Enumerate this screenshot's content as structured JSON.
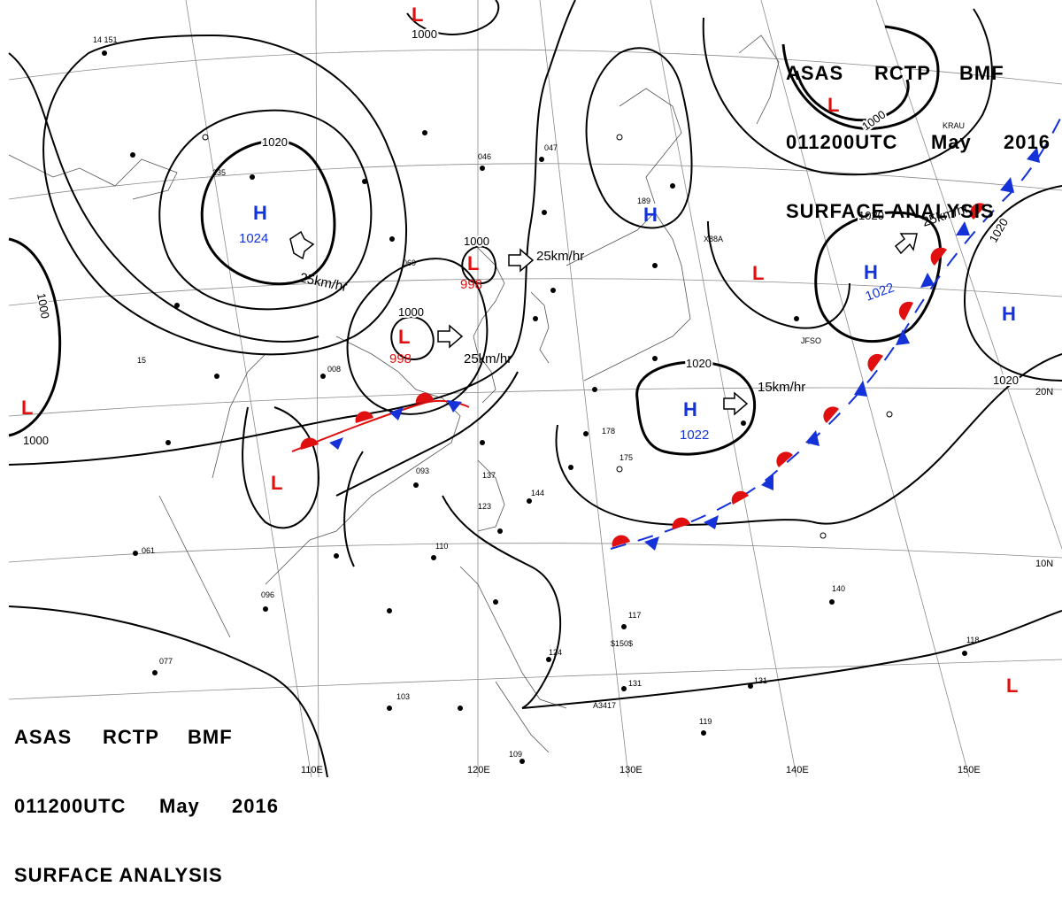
{
  "title": {
    "agency_line": [
      "ASAS",
      "RCTP",
      "BMF"
    ],
    "time_line": [
      "011200UTC",
      "May",
      "2016"
    ],
    "analysis_line": "SURFACE ANALYSIS"
  },
  "pressure_centers": [
    {
      "type": "H",
      "value": "1024"
    },
    {
      "type": "H",
      "value": "1022"
    },
    {
      "type": "H",
      "value": "1022"
    },
    {
      "type": "H",
      "value": ""
    },
    {
      "type": "H",
      "value": ""
    },
    {
      "type": "L",
      "value": "998"
    },
    {
      "type": "L",
      "value": "998"
    },
    {
      "type": "L",
      "value": ""
    },
    {
      "type": "L",
      "value": ""
    },
    {
      "type": "L",
      "value": ""
    },
    {
      "type": "L",
      "value": ""
    },
    {
      "type": "L",
      "value": ""
    },
    {
      "type": "L",
      "value": ""
    }
  ],
  "movement_labels": [
    "25km/hr",
    "25km/hr",
    "25km/hr",
    "15km/hr",
    "25km/hr"
  ],
  "isobar_labels": [
    "1020",
    "1000",
    "1000",
    "1000",
    "1000",
    "1020",
    "1020",
    "1020",
    "1000",
    "1000",
    "1020"
  ],
  "lon_labels": [
    "110E",
    "120E",
    "130E",
    "140E",
    "150E"
  ],
  "lat_labels": [
    "20N",
    "10N"
  ],
  "station_labels": [
    "JFSO",
    "KRAU",
    "X88A",
    "A3417",
    "$150$"
  ],
  "colors": {
    "high": "#1432d8",
    "low": "#e01010",
    "warm_front": "#e01010",
    "cold_front": "#1432d8",
    "isobar": "#000000",
    "grid": "#888888",
    "coast": "#555555"
  }
}
